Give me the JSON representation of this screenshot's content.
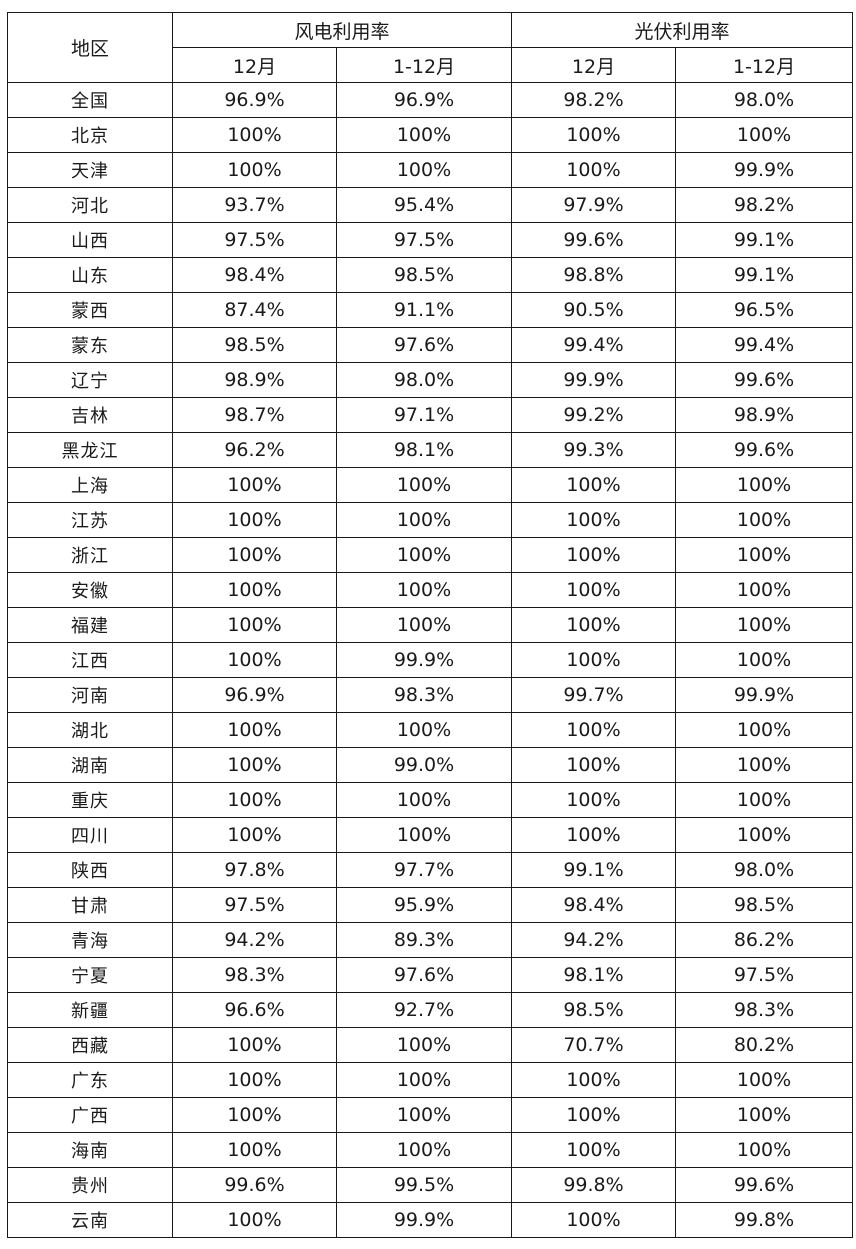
{
  "header": {
    "region": "地区",
    "wind": "风电利用率",
    "solar": "光伏利用率",
    "month": "12月",
    "ytd": "1-12月"
  },
  "rows": [
    {
      "region": "全国",
      "wind_month": "96.9%",
      "wind_ytd": "96.9%",
      "solar_month": "98.2%",
      "solar_ytd": "98.0%"
    },
    {
      "region": "北京",
      "wind_month": "100%",
      "wind_ytd": "100%",
      "solar_month": "100%",
      "solar_ytd": "100%"
    },
    {
      "region": "天津",
      "wind_month": "100%",
      "wind_ytd": "100%",
      "solar_month": "100%",
      "solar_ytd": "99.9%"
    },
    {
      "region": "河北",
      "wind_month": "93.7%",
      "wind_ytd": "95.4%",
      "solar_month": "97.9%",
      "solar_ytd": "98.2%"
    },
    {
      "region": "山西",
      "wind_month": "97.5%",
      "wind_ytd": "97.5%",
      "solar_month": "99.6%",
      "solar_ytd": "99.1%"
    },
    {
      "region": "山东",
      "wind_month": "98.4%",
      "wind_ytd": "98.5%",
      "solar_month": "98.8%",
      "solar_ytd": "99.1%"
    },
    {
      "region": "蒙西",
      "wind_month": "87.4%",
      "wind_ytd": "91.1%",
      "solar_month": "90.5%",
      "solar_ytd": "96.5%"
    },
    {
      "region": "蒙东",
      "wind_month": "98.5%",
      "wind_ytd": "97.6%",
      "solar_month": "99.4%",
      "solar_ytd": "99.4%"
    },
    {
      "region": "辽宁",
      "wind_month": "98.9%",
      "wind_ytd": "98.0%",
      "solar_month": "99.9%",
      "solar_ytd": "99.6%"
    },
    {
      "region": "吉林",
      "wind_month": "98.7%",
      "wind_ytd": "97.1%",
      "solar_month": "99.2%",
      "solar_ytd": "98.9%"
    },
    {
      "region": "黑龙江",
      "wind_month": "96.2%",
      "wind_ytd": "98.1%",
      "solar_month": "99.3%",
      "solar_ytd": "99.6%"
    },
    {
      "region": "上海",
      "wind_month": "100%",
      "wind_ytd": "100%",
      "solar_month": "100%",
      "solar_ytd": "100%"
    },
    {
      "region": "江苏",
      "wind_month": "100%",
      "wind_ytd": "100%",
      "solar_month": "100%",
      "solar_ytd": "100%"
    },
    {
      "region": "浙江",
      "wind_month": "100%",
      "wind_ytd": "100%",
      "solar_month": "100%",
      "solar_ytd": "100%"
    },
    {
      "region": "安徽",
      "wind_month": "100%",
      "wind_ytd": "100%",
      "solar_month": "100%",
      "solar_ytd": "100%"
    },
    {
      "region": "福建",
      "wind_month": "100%",
      "wind_ytd": "100%",
      "solar_month": "100%",
      "solar_ytd": "100%"
    },
    {
      "region": "江西",
      "wind_month": "100%",
      "wind_ytd": "99.9%",
      "solar_month": "100%",
      "solar_ytd": "100%"
    },
    {
      "region": "河南",
      "wind_month": "96.9%",
      "wind_ytd": "98.3%",
      "solar_month": "99.7%",
      "solar_ytd": "99.9%"
    },
    {
      "region": "湖北",
      "wind_month": "100%",
      "wind_ytd": "100%",
      "solar_month": "100%",
      "solar_ytd": "100%"
    },
    {
      "region": "湖南",
      "wind_month": "100%",
      "wind_ytd": "99.0%",
      "solar_month": "100%",
      "solar_ytd": "100%"
    },
    {
      "region": "重庆",
      "wind_month": "100%",
      "wind_ytd": "100%",
      "solar_month": "100%",
      "solar_ytd": "100%"
    },
    {
      "region": "四川",
      "wind_month": "100%",
      "wind_ytd": "100%",
      "solar_month": "100%",
      "solar_ytd": "100%"
    },
    {
      "region": "陕西",
      "wind_month": "97.8%",
      "wind_ytd": "97.7%",
      "solar_month": "99.1%",
      "solar_ytd": "98.0%"
    },
    {
      "region": "甘肃",
      "wind_month": "97.5%",
      "wind_ytd": "95.9%",
      "solar_month": "98.4%",
      "solar_ytd": "98.5%"
    },
    {
      "region": "青海",
      "wind_month": "94.2%",
      "wind_ytd": "89.3%",
      "solar_month": "94.2%",
      "solar_ytd": "86.2%"
    },
    {
      "region": "宁夏",
      "wind_month": "98.3%",
      "wind_ytd": "97.6%",
      "solar_month": "98.1%",
      "solar_ytd": "97.5%"
    },
    {
      "region": "新疆",
      "wind_month": "96.6%",
      "wind_ytd": "92.7%",
      "solar_month": "98.5%",
      "solar_ytd": "98.3%"
    },
    {
      "region": "西藏",
      "wind_month": "100%",
      "wind_ytd": "100%",
      "solar_month": "70.7%",
      "solar_ytd": "80.2%"
    },
    {
      "region": "广东",
      "wind_month": "100%",
      "wind_ytd": "100%",
      "solar_month": "100%",
      "solar_ytd": "100%"
    },
    {
      "region": "广西",
      "wind_month": "100%",
      "wind_ytd": "100%",
      "solar_month": "100%",
      "solar_ytd": "100%"
    },
    {
      "region": "海南",
      "wind_month": "100%",
      "wind_ytd": "100%",
      "solar_month": "100%",
      "solar_ytd": "100%"
    },
    {
      "region": "贵州",
      "wind_month": "99.6%",
      "wind_ytd": "99.5%",
      "solar_month": "99.8%",
      "solar_ytd": "99.6%"
    },
    {
      "region": "云南",
      "wind_month": "100%",
      "wind_ytd": "99.9%",
      "solar_month": "100%",
      "solar_ytd": "99.8%"
    }
  ]
}
